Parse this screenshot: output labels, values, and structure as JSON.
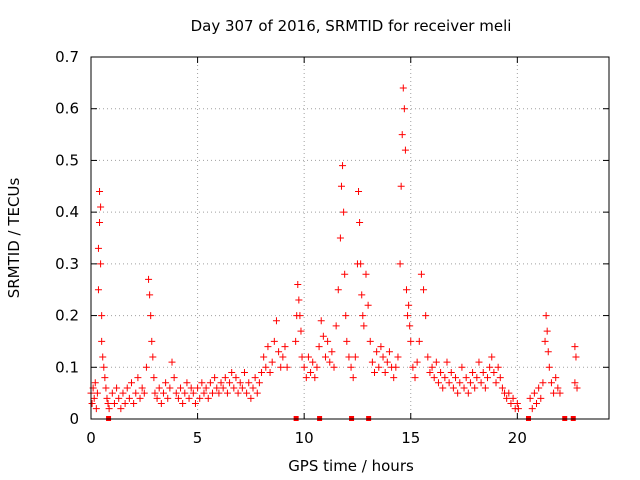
{
  "chart_data": {
    "type": "scatter",
    "title": "Day 307 of 2016, SRMTID for receiver meli",
    "xlabel": "GPS time / hours",
    "ylabel": "SRMTID / TECUs",
    "xlim": [
      0,
      24.3
    ],
    "ylim": [
      0,
      0.7
    ],
    "xticks": [
      0,
      5,
      10,
      15,
      20
    ],
    "xtick_labels": [
      "0",
      "5",
      "10",
      "15",
      "20"
    ],
    "yticks": [
      0,
      0.1,
      0.2,
      0.3,
      0.4,
      0.5,
      0.6,
      0.7
    ],
    "ytick_labels": [
      "0",
      "0.1",
      "0.2",
      "0.3",
      "0.4",
      "0.5",
      "0.6",
      "0.7"
    ],
    "grid": true,
    "marker": "+",
    "series": [
      {
        "name": "SRMTID",
        "color": "#ff0000",
        "points": [
          [
            0.0,
            0.05
          ],
          [
            0.05,
            0.03
          ],
          [
            0.1,
            0.06
          ],
          [
            0.15,
            0.04
          ],
          [
            0.2,
            0.07
          ],
          [
            0.25,
            0.02
          ],
          [
            0.3,
            0.05
          ],
          [
            0.35,
            0.25
          ],
          [
            0.35,
            0.33
          ],
          [
            0.4,
            0.44
          ],
          [
            0.4,
            0.38
          ],
          [
            0.45,
            0.3
          ],
          [
            0.45,
            0.41
          ],
          [
            0.5,
            0.2
          ],
          [
            0.5,
            0.15
          ],
          [
            0.55,
            0.12
          ],
          [
            0.6,
            0.1
          ],
          [
            0.65,
            0.08
          ],
          [
            0.7,
            0.06
          ],
          [
            0.75,
            0.04
          ],
          [
            0.8,
            0.03
          ],
          [
            0.85,
            0.02
          ],
          [
            1.0,
            0.05
          ],
          [
            1.1,
            0.03
          ],
          [
            1.2,
            0.06
          ],
          [
            1.3,
            0.04
          ],
          [
            1.4,
            0.02
          ],
          [
            1.5,
            0.05
          ],
          [
            1.6,
            0.03
          ],
          [
            1.7,
            0.06
          ],
          [
            1.8,
            0.04
          ],
          [
            1.9,
            0.07
          ],
          [
            2.0,
            0.03
          ],
          [
            2.1,
            0.05
          ],
          [
            2.2,
            0.08
          ],
          [
            2.3,
            0.04
          ],
          [
            2.4,
            0.06
          ],
          [
            2.5,
            0.05
          ],
          [
            2.6,
            0.1
          ],
          [
            2.7,
            0.27
          ],
          [
            2.75,
            0.24
          ],
          [
            2.8,
            0.2
          ],
          [
            2.85,
            0.15
          ],
          [
            2.9,
            0.12
          ],
          [
            2.95,
            0.08
          ],
          [
            3.0,
            0.05
          ],
          [
            3.1,
            0.04
          ],
          [
            3.2,
            0.06
          ],
          [
            3.3,
            0.03
          ],
          [
            3.4,
            0.05
          ],
          [
            3.5,
            0.07
          ],
          [
            3.6,
            0.04
          ],
          [
            3.7,
            0.06
          ],
          [
            3.8,
            0.11
          ],
          [
            3.9,
            0.08
          ],
          [
            4.0,
            0.05
          ],
          [
            4.1,
            0.04
          ],
          [
            4.2,
            0.06
          ],
          [
            4.3,
            0.03
          ],
          [
            4.4,
            0.05
          ],
          [
            4.5,
            0.07
          ],
          [
            4.6,
            0.04
          ],
          [
            4.7,
            0.06
          ],
          [
            4.8,
            0.05
          ],
          [
            4.9,
            0.03
          ],
          [
            5.0,
            0.06
          ],
          [
            5.1,
            0.04
          ],
          [
            5.2,
            0.07
          ],
          [
            5.3,
            0.05
          ],
          [
            5.4,
            0.06
          ],
          [
            5.5,
            0.04
          ],
          [
            5.6,
            0.07
          ],
          [
            5.7,
            0.05
          ],
          [
            5.8,
            0.08
          ],
          [
            5.9,
            0.06
          ],
          [
            6.0,
            0.05
          ],
          [
            6.1,
            0.07
          ],
          [
            6.2,
            0.06
          ],
          [
            6.3,
            0.08
          ],
          [
            6.4,
            0.05
          ],
          [
            6.5,
            0.07
          ],
          [
            6.6,
            0.09
          ],
          [
            6.7,
            0.06
          ],
          [
            6.8,
            0.08
          ],
          [
            6.9,
            0.05
          ],
          [
            7.0,
            0.07
          ],
          [
            7.1,
            0.06
          ],
          [
            7.2,
            0.09
          ],
          [
            7.3,
            0.05
          ],
          [
            7.4,
            0.07
          ],
          [
            7.5,
            0.04
          ],
          [
            7.6,
            0.06
          ],
          [
            7.7,
            0.08
          ],
          [
            7.8,
            0.05
          ],
          [
            7.9,
            0.07
          ],
          [
            8.0,
            0.09
          ],
          [
            8.1,
            0.12
          ],
          [
            8.2,
            0.1
          ],
          [
            8.3,
            0.14
          ],
          [
            8.4,
            0.09
          ],
          [
            8.5,
            0.11
          ],
          [
            8.6,
            0.15
          ],
          [
            8.7,
            0.19
          ],
          [
            8.8,
            0.13
          ],
          [
            8.9,
            0.1
          ],
          [
            9.0,
            0.12
          ],
          [
            9.1,
            0.14
          ],
          [
            9.2,
            0.1
          ],
          [
            9.6,
            0.15
          ],
          [
            9.65,
            0.2
          ],
          [
            9.7,
            0.26
          ],
          [
            9.75,
            0.23
          ],
          [
            9.8,
            0.2
          ],
          [
            9.85,
            0.17
          ],
          [
            9.9,
            0.12
          ],
          [
            10.0,
            0.1
          ],
          [
            10.1,
            0.08
          ],
          [
            10.2,
            0.12
          ],
          [
            10.3,
            0.09
          ],
          [
            10.4,
            0.11
          ],
          [
            10.5,
            0.08
          ],
          [
            10.6,
            0.1
          ],
          [
            10.7,
            0.14
          ],
          [
            10.8,
            0.19
          ],
          [
            10.9,
            0.16
          ],
          [
            11.0,
            0.12
          ],
          [
            11.1,
            0.15
          ],
          [
            11.2,
            0.11
          ],
          [
            11.3,
            0.13
          ],
          [
            11.4,
            0.1
          ],
          [
            11.5,
            0.18
          ],
          [
            11.6,
            0.25
          ],
          [
            11.7,
            0.35
          ],
          [
            11.75,
            0.45
          ],
          [
            11.8,
            0.49
          ],
          [
            11.85,
            0.4
          ],
          [
            11.9,
            0.28
          ],
          [
            11.95,
            0.2
          ],
          [
            12.0,
            0.15
          ],
          [
            12.1,
            0.12
          ],
          [
            12.2,
            0.1
          ],
          [
            12.3,
            0.08
          ],
          [
            12.4,
            0.12
          ],
          [
            12.5,
            0.3
          ],
          [
            12.55,
            0.44
          ],
          [
            12.6,
            0.38
          ],
          [
            12.65,
            0.3
          ],
          [
            12.7,
            0.24
          ],
          [
            12.75,
            0.2
          ],
          [
            12.8,
            0.18
          ],
          [
            12.9,
            0.28
          ],
          [
            13.0,
            0.22
          ],
          [
            13.1,
            0.15
          ],
          [
            13.2,
            0.11
          ],
          [
            13.3,
            0.09
          ],
          [
            13.4,
            0.13
          ],
          [
            13.5,
            0.1
          ],
          [
            13.6,
            0.14
          ],
          [
            13.7,
            0.12
          ],
          [
            13.8,
            0.09
          ],
          [
            13.9,
            0.11
          ],
          [
            14.0,
            0.13
          ],
          [
            14.1,
            0.1
          ],
          [
            14.2,
            0.08
          ],
          [
            14.3,
            0.1
          ],
          [
            14.4,
            0.12
          ],
          [
            14.5,
            0.3
          ],
          [
            14.55,
            0.45
          ],
          [
            14.6,
            0.55
          ],
          [
            14.65,
            0.64
          ],
          [
            14.7,
            0.6
          ],
          [
            14.75,
            0.52
          ],
          [
            14.8,
            0.25
          ],
          [
            14.85,
            0.2
          ],
          [
            14.9,
            0.22
          ],
          [
            14.95,
            0.18
          ],
          [
            15.0,
            0.15
          ],
          [
            15.1,
            0.1
          ],
          [
            15.2,
            0.08
          ],
          [
            15.3,
            0.11
          ],
          [
            15.4,
            0.15
          ],
          [
            15.5,
            0.28
          ],
          [
            15.6,
            0.25
          ],
          [
            15.7,
            0.2
          ],
          [
            15.8,
            0.12
          ],
          [
            15.9,
            0.09
          ],
          [
            16.0,
            0.1
          ],
          [
            16.1,
            0.08
          ],
          [
            16.2,
            0.11
          ],
          [
            16.3,
            0.07
          ],
          [
            16.4,
            0.09
          ],
          [
            16.5,
            0.06
          ],
          [
            16.6,
            0.08
          ],
          [
            16.7,
            0.11
          ],
          [
            16.8,
            0.07
          ],
          [
            16.9,
            0.09
          ],
          [
            17.0,
            0.06
          ],
          [
            17.1,
            0.08
          ],
          [
            17.2,
            0.05
          ],
          [
            17.3,
            0.07
          ],
          [
            17.4,
            0.1
          ],
          [
            17.5,
            0.06
          ],
          [
            17.6,
            0.08
          ],
          [
            17.7,
            0.05
          ],
          [
            17.8,
            0.07
          ],
          [
            17.9,
            0.09
          ],
          [
            18.0,
            0.06
          ],
          [
            18.1,
            0.08
          ],
          [
            18.2,
            0.11
          ],
          [
            18.3,
            0.07
          ],
          [
            18.4,
            0.09
          ],
          [
            18.5,
            0.06
          ],
          [
            18.6,
            0.08
          ],
          [
            18.7,
            0.1
          ],
          [
            18.8,
            0.12
          ],
          [
            18.9,
            0.09
          ],
          [
            19.0,
            0.07
          ],
          [
            19.1,
            0.1
          ],
          [
            19.2,
            0.08
          ],
          [
            19.3,
            0.06
          ],
          [
            19.4,
            0.05
          ],
          [
            19.5,
            0.04
          ],
          [
            19.6,
            0.05
          ],
          [
            19.7,
            0.03
          ],
          [
            19.8,
            0.04
          ],
          [
            19.9,
            0.02
          ],
          [
            20.0,
            0.03
          ],
          [
            20.05,
            0.02
          ],
          [
            20.6,
            0.04
          ],
          [
            20.7,
            0.02
          ],
          [
            20.8,
            0.05
          ],
          [
            20.9,
            0.03
          ],
          [
            21.0,
            0.06
          ],
          [
            21.1,
            0.04
          ],
          [
            21.2,
            0.07
          ],
          [
            21.3,
            0.15
          ],
          [
            21.35,
            0.2
          ],
          [
            21.4,
            0.17
          ],
          [
            21.45,
            0.13
          ],
          [
            21.5,
            0.1
          ],
          [
            21.6,
            0.07
          ],
          [
            21.7,
            0.05
          ],
          [
            21.8,
            0.08
          ],
          [
            21.9,
            0.06
          ],
          [
            22.0,
            0.05
          ],
          [
            22.7,
            0.14
          ],
          [
            22.75,
            0.12
          ],
          [
            22.7,
            0.07
          ],
          [
            22.8,
            0.06
          ]
        ]
      }
    ],
    "gap_markers_x": [
      0.8,
      9.6,
      10.7,
      12.2,
      13.0,
      20.5,
      22.2,
      22.6
    ]
  }
}
